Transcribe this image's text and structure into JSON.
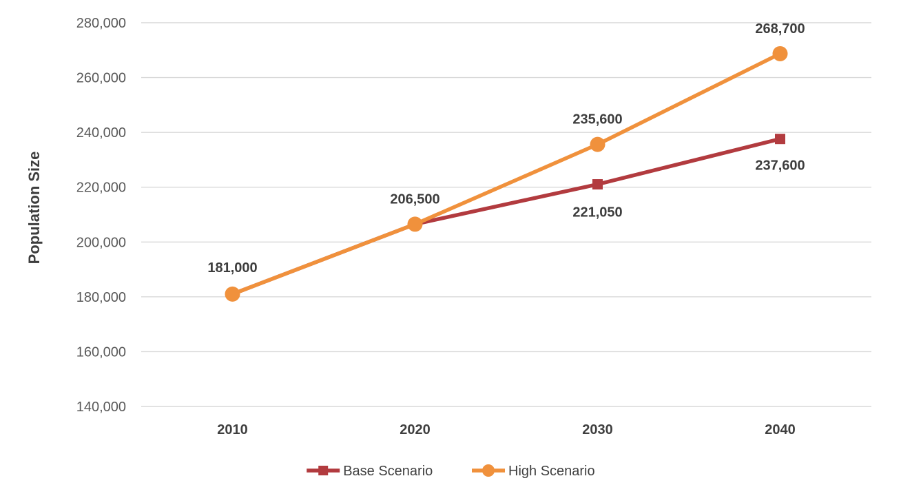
{
  "chart_data": {
    "type": "line",
    "categories": [
      "2010",
      "2020",
      "2030",
      "2040"
    ],
    "series": [
      {
        "name": "Base Scenario",
        "values": [
          181000,
          206500,
          221050,
          237600
        ],
        "color": "#b23b3f",
        "marker": "square"
      },
      {
        "name": "High Scenario",
        "values": [
          181000,
          206500,
          235600,
          268700
        ],
        "color": "#f0913c",
        "marker": "circle"
      }
    ],
    "title": "",
    "xlabel": "",
    "ylabel": "Population Size",
    "ylim": [
      140000,
      280000
    ],
    "ytick_step": 20000,
    "ytick_labels": [
      "140,000",
      "160,000",
      "180,000",
      "200,000",
      "220,000",
      "240,000",
      "260,000",
      "280,000"
    ],
    "grid": true,
    "gridline_color": "#d9d9d9",
    "legend_position": "bottom",
    "data_labels": [
      {
        "text": "181,000",
        "series": 1,
        "index": 0,
        "dy": -32
      },
      {
        "text": "206,500",
        "series": 1,
        "index": 1,
        "dy": -30
      },
      {
        "text": "235,600",
        "series": 1,
        "index": 2,
        "dy": -30
      },
      {
        "text": "268,700",
        "series": 1,
        "index": 3,
        "dy": -30
      },
      {
        "text": "221,050",
        "series": 0,
        "index": 2,
        "dy": 47
      },
      {
        "text": "237,600",
        "series": 0,
        "index": 3,
        "dy": 45
      }
    ]
  }
}
